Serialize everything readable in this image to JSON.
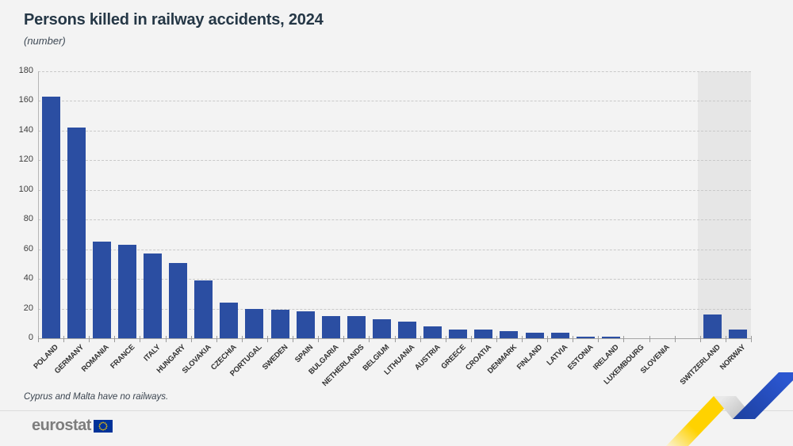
{
  "title": "Persons killed in railway accidents, 2024",
  "subtitle": "(number)",
  "footnote": "Cyprus and Malta have no railways.",
  "logo": {
    "text": "eurostat"
  },
  "colors": {
    "bar": "#2b4ea2",
    "non_eu_band": "#e6e6e6",
    "background": "#f3f3f3",
    "deco_yellow": "#ffd200",
    "deco_gray": "#c4c4c4",
    "deco_blue": "#2149be",
    "eu_flag_blue": "#003399",
    "eu_flag_stars": "#ffcc00"
  },
  "chart_data": {
    "type": "bar",
    "title": "Persons killed in railway accidents, 2024",
    "unit": "number",
    "categories": [
      "POLAND",
      "GERMANY",
      "ROMANIA",
      "FRANCE",
      "ITALY",
      "HUNGARY",
      "SLOVAKIA",
      "CZECHIA",
      "PORTUGAL",
      "SWEDEN",
      "SPAIN",
      "BULGARIA",
      "NETHERLANDS",
      "BELGIUM",
      "LITHUANIA",
      "AUSTRIA",
      "GREECE",
      "CROATIA",
      "DENMARK",
      "FINLAND",
      "LATVIA",
      "ESTONIA",
      "IRELAND",
      "LUXEMBOURG",
      "SLOVENIA",
      "SWITZERLAND",
      "NORWAY"
    ],
    "values": [
      163,
      142,
      65,
      63,
      57,
      51,
      39,
      24,
      20,
      19,
      18,
      15,
      15,
      13,
      11,
      8,
      6,
      6,
      5,
      4,
      4,
      1,
      1,
      0,
      0,
      16,
      6
    ],
    "ylim": [
      0,
      180
    ],
    "ytick_step": 20,
    "grid": "dashed-horizontal",
    "legend": "none",
    "xlabel_rotation_deg": -45,
    "gap_after_index": 24,
    "non_eu_highlight": [
      "SWITZERLAND",
      "NORWAY"
    ]
  }
}
